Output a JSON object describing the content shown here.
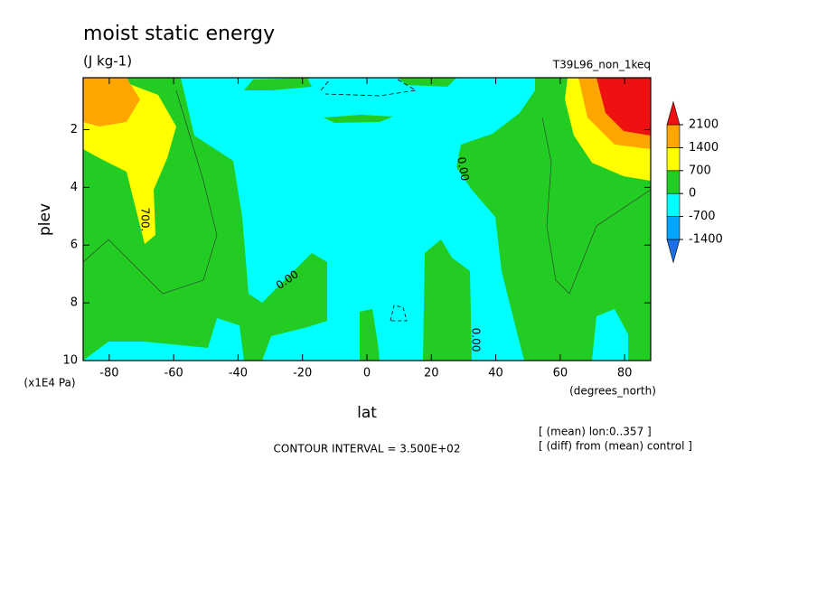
{
  "chart_data": {
    "type": "contour",
    "title": "moist static energy",
    "subtitle": "(J kg-1)",
    "dataset": "T39L96_non_1keq",
    "x_label": "lat",
    "x_units": "(degrees_north)",
    "y_label": "plev",
    "y_units": "(x1E4 Pa)",
    "xlim": [
      -88.1,
      88.1
    ],
    "xticks": [
      -80,
      -60,
      -40,
      -20,
      0,
      20,
      40,
      60,
      80
    ],
    "ylim": [
      0.2,
      10
    ],
    "y_inverted": true,
    "yticks": [
      2,
      4,
      6,
      8,
      10
    ],
    "levels": [
      -1400,
      -700,
      0,
      700,
      1400,
      2100
    ],
    "colors": [
      "#1e6ee6",
      "#00a5ff",
      "#00ffff",
      "#22cc22",
      "#ffff00",
      "#ffa500",
      "#ee1111"
    ],
    "contour_labels": [
      "700.",
      "0.00",
      "0.00",
      "0.00"
    ],
    "footer": "CONTOUR INTERVAL = 3.500E+02",
    "notes": [
      "[ (mean) lon:0..357 ]",
      "[ (diff) from (mean) control ]"
    ]
  }
}
